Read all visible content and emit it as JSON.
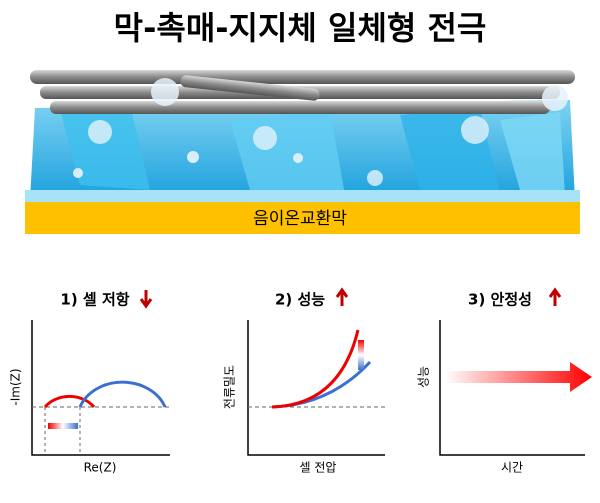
{
  "header": {
    "title": "막-촉매-지지체 일체형 전극"
  },
  "illustration": {
    "membrane_label": "음이온교환막"
  },
  "panels": [
    {
      "title": "1) 셀 저항",
      "y_label": "-Im(Z)",
      "x_label": "Re(Z)"
    },
    {
      "title": "2) 성능",
      "y_label": "전류밀도",
      "x_label": "셀 전압"
    },
    {
      "title": "3) 안정성",
      "y_label": "성능",
      "x_label": "시간"
    }
  ]
}
